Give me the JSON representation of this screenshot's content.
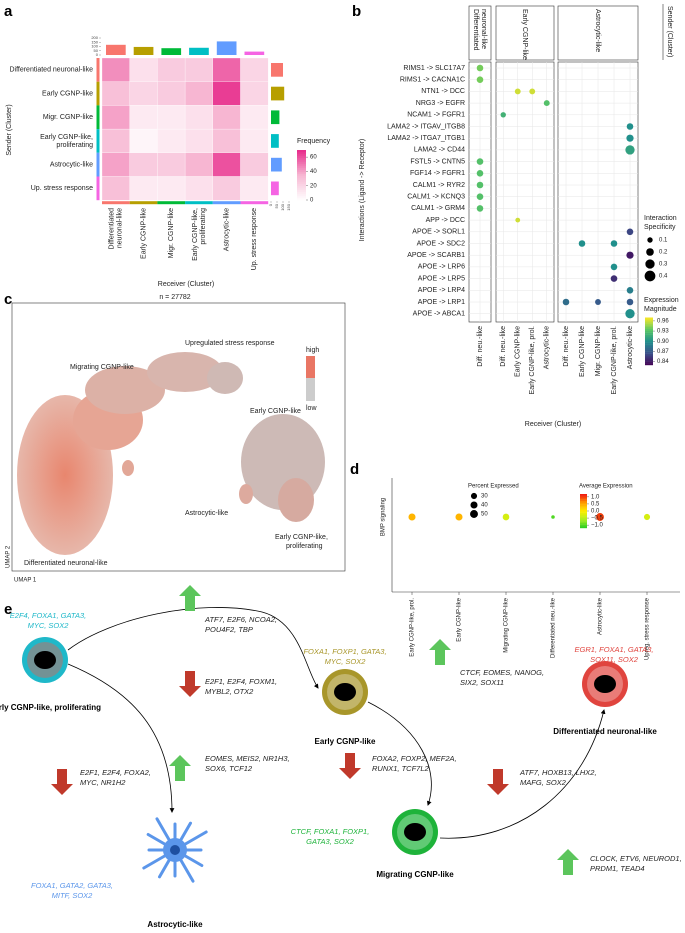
{
  "a": {
    "label": "a",
    "ylabel": "Sender (Cluster)",
    "xlabel": "Receiver (Cluster)",
    "row_labels": [
      [
        "Differentiated neuronal-like"
      ],
      [
        "Early CGNP-like"
      ],
      [
        "Migr. CGNP-like"
      ],
      [
        "Early CGNP-like,",
        "proliferating"
      ],
      [
        "Astrocytic-like"
      ],
      [
        "Up. stress response"
      ]
    ],
    "col_labels": [
      [
        "Differentiated",
        "neuronal-like"
      ],
      [
        "Early CGNP-like"
      ],
      [
        "Migr. CGNP-like"
      ],
      [
        "Early CGNP-like,",
        "proliferating"
      ],
      [
        "Astrocytic-like"
      ],
      [
        "Up. stress response"
      ]
    ],
    "cluster_colors": [
      "#f8766d",
      "#b79f00",
      "#00ba38",
      "#00bfc4",
      "#619cff",
      "#f564e3"
    ],
    "values": [
      [
        45,
        15,
        25,
        25,
        55,
        20
      ],
      [
        30,
        20,
        25,
        35,
        65,
        20
      ],
      [
        40,
        10,
        10,
        15,
        35,
        10
      ],
      [
        30,
        5,
        10,
        15,
        30,
        10
      ],
      [
        40,
        25,
        25,
        35,
        60,
        25
      ],
      [
        30,
        10,
        10,
        15,
        25,
        10
      ]
    ],
    "top_totals": [
      120,
      95,
      80,
      85,
      160,
      40
    ],
    "top_ylim": [
      0,
      200
    ],
    "top_ticks": [
      0,
      50,
      100,
      150,
      200
    ],
    "right_totals": [
      100,
      110,
      70,
      65,
      90,
      65
    ],
    "right_xlim": [
      0,
      150
    ],
    "right_ticks": [
      0,
      50,
      100,
      150
    ],
    "legend": {
      "title": "Frequency",
      "ticks": [
        60,
        40,
        20,
        0
      ],
      "clim": [
        0,
        70
      ],
      "colors": [
        "#ffffff",
        "#f7b6d2",
        "#e7298a"
      ]
    }
  },
  "b": {
    "label": "b",
    "ylabel": "Interactions (Ligand -> Receptor)",
    "xlabel": "Receiver (Cluster)",
    "sender_title": "Sender (Cluster)",
    "interactions": [
      "RIMS1 -> SLC17A7",
      "RIMS1 -> CACNA1C",
      "NTN1 -> DCC",
      "NRG3 -> EGFR",
      "NCAM1 -> FGFR1",
      "LAMA2 -> ITGAV_ITGB8",
      "LAMA2 -> ITGA7_ITGB1",
      "LAMA2 -> CD44",
      "FSTL5 -> CNTN5",
      "FGF14 -> FGFR1",
      "CALM1 -> RYR2",
      "CALM1 -> KCNQ3",
      "CALM1 -> GRM4",
      "APP -> DCC",
      "APOE -> SORL1",
      "APOE -> SDC2",
      "APOE -> SCARB1",
      "APOE -> LRP6",
      "APOE -> LRP5",
      "APOE -> LRP4",
      "APOE -> LRP1",
      "APOE -> ABCA1"
    ],
    "facets": [
      {
        "name": [
          "Differentiated",
          "neuronal-like"
        ],
        "columns": [
          {
            "name": "Diff. neu.-like",
            "specificity": [
              0.15,
              0.15,
              null,
              null,
              null,
              null,
              null,
              null,
              0.15,
              0.15,
              0.15,
              0.15,
              0.15,
              null,
              null,
              null,
              null,
              null,
              null,
              null,
              null,
              null
            ],
            "magnitude": [
              0.94,
              0.94,
              null,
              null,
              null,
              null,
              null,
              null,
              0.93,
              0.93,
              0.93,
              0.93,
              0.93,
              null,
              null,
              null,
              null,
              null,
              null,
              null,
              null,
              null
            ]
          }
        ]
      },
      {
        "name": [
          "Early CGNP-like"
        ],
        "columns": [
          {
            "name": "Diff. neu.-like",
            "specificity": [
              null,
              null,
              null,
              null,
              0.1,
              null,
              null,
              null,
              null,
              null,
              null,
              null,
              null,
              null,
              null,
              null,
              null,
              null,
              null,
              null,
              null,
              null
            ],
            "magnitude": [
              null,
              null,
              null,
              null,
              0.92,
              null,
              null,
              null,
              null,
              null,
              null,
              null,
              null,
              null,
              null,
              null,
              null,
              null,
              null,
              null,
              null,
              null
            ]
          },
          {
            "name": "Early CGNP-like",
            "specificity": [
              null,
              null,
              0.12,
              null,
              null,
              null,
              null,
              null,
              null,
              null,
              null,
              null,
              null,
              0.08,
              null,
              null,
              null,
              null,
              null,
              null,
              null,
              null
            ],
            "magnitude": [
              null,
              null,
              0.96,
              null,
              null,
              null,
              null,
              null,
              null,
              null,
              null,
              null,
              null,
              0.96,
              null,
              null,
              null,
              null,
              null,
              null,
              null,
              null
            ]
          },
          {
            "name": "Early CGNP-like, prol.",
            "specificity": [
              null,
              null,
              0.12,
              null,
              null,
              null,
              null,
              null,
              null,
              null,
              null,
              null,
              null,
              null,
              null,
              null,
              null,
              null,
              null,
              null,
              null,
              null
            ],
            "magnitude": [
              null,
              null,
              0.96,
              null,
              null,
              null,
              null,
              null,
              null,
              null,
              null,
              null,
              null,
              null,
              null,
              null,
              null,
              null,
              null,
              null,
              null,
              null
            ]
          },
          {
            "name": "Astrocytic-like",
            "specificity": [
              null,
              null,
              null,
              0.12,
              null,
              null,
              null,
              null,
              null,
              null,
              null,
              null,
              null,
              null,
              null,
              null,
              null,
              null,
              null,
              null,
              null,
              null
            ],
            "magnitude": [
              null,
              null,
              null,
              0.93,
              null,
              null,
              null,
              null,
              null,
              null,
              null,
              null,
              null,
              null,
              null,
              null,
              null,
              null,
              null,
              null,
              null,
              null
            ]
          }
        ]
      },
      {
        "name": [
          "Astrocytic-like"
        ],
        "columns": [
          {
            "name": "Diff. neu.-like",
            "specificity": [
              null,
              null,
              null,
              null,
              null,
              null,
              null,
              null,
              null,
              null,
              null,
              null,
              null,
              null,
              null,
              null,
              null,
              null,
              null,
              null,
              0.15,
              null
            ],
            "magnitude": [
              null,
              null,
              null,
              null,
              null,
              null,
              null,
              null,
              null,
              null,
              null,
              null,
              null,
              null,
              null,
              null,
              null,
              null,
              null,
              null,
              0.88,
              null
            ]
          },
          {
            "name": "Early CGNP-like",
            "specificity": [
              null,
              null,
              null,
              null,
              null,
              null,
              null,
              null,
              null,
              null,
              null,
              null,
              null,
              null,
              null,
              0.15,
              null,
              null,
              null,
              null,
              null,
              null
            ],
            "magnitude": [
              null,
              null,
              null,
              null,
              null,
              null,
              null,
              null,
              null,
              null,
              null,
              null,
              null,
              null,
              null,
              0.9,
              null,
              null,
              null,
              null,
              null,
              null
            ]
          },
          {
            "name": "Migr. CGNP-like",
            "specificity": [
              null,
              null,
              null,
              null,
              null,
              null,
              null,
              null,
              null,
              null,
              null,
              null,
              null,
              null,
              null,
              null,
              null,
              null,
              null,
              null,
              0.12,
              null
            ],
            "magnitude": [
              null,
              null,
              null,
              null,
              null,
              null,
              null,
              null,
              null,
              null,
              null,
              null,
              null,
              null,
              null,
              null,
              null,
              null,
              null,
              null,
              0.87,
              null
            ]
          },
          {
            "name": "Early CGNP-like, prol.",
            "specificity": [
              null,
              null,
              null,
              null,
              null,
              null,
              null,
              null,
              null,
              null,
              null,
              null,
              null,
              null,
              null,
              0.15,
              null,
              0.15,
              0.15,
              null,
              null,
              null
            ],
            "magnitude": [
              null,
              null,
              null,
              null,
              null,
              null,
              null,
              null,
              null,
              null,
              null,
              null,
              null,
              null,
              null,
              0.9,
              null,
              0.9,
              0.85,
              null,
              null,
              null
            ]
          },
          {
            "name": "Astrocytic-like",
            "specificity": [
              null,
              null,
              null,
              null,
              null,
              0.15,
              0.18,
              0.3,
              null,
              null,
              null,
              null,
              null,
              null,
              0.15,
              null,
              0.18,
              null,
              null,
              0.15,
              0.15,
              0.3
            ],
            "magnitude": [
              null,
              null,
              null,
              null,
              null,
              0.9,
              0.9,
              0.91,
              null,
              null,
              null,
              null,
              null,
              null,
              0.86,
              null,
              0.84,
              null,
              null,
              0.89,
              0.87,
              0.9
            ]
          }
        ]
      }
    ],
    "size_legend": {
      "title": [
        "Interaction",
        "Specificity"
      ],
      "values": [
        0.1,
        0.2,
        0.3,
        0.4
      ]
    },
    "color_legend": {
      "title": [
        "Expression",
        "Magnitude"
      ],
      "ticks": [
        0.96,
        0.93,
        {
          "value": 0.9,
          "label": "0.90"
        },
        0.87,
        0.84
      ],
      "clim": [
        0.83,
        0.97
      ],
      "colors": [
        "#440154",
        "#3b528b",
        "#21908c",
        "#5dc863",
        "#fde725"
      ]
    }
  },
  "c": {
    "label": "c",
    "title": "n = 27782",
    "xlabel": "UMAP 1",
    "ylabel": "UMAP 2",
    "cluster_labels": [
      "Migrating CGNP-like",
      "Upregulated stress response",
      "Early CGNP-like",
      "Astrocytic-like",
      [
        "Early CGNP-like,",
        "proliferating"
      ],
      "Differentiated neuronal-like"
    ],
    "legend": {
      "high": "high",
      "low": "low"
    }
  },
  "d": {
    "label": "d",
    "row": "BMP signaling",
    "categories": [
      "Early CGNP-like, prol.",
      "Early CGNP-like",
      "Migrating CGNP-like",
      "Differentiated neu.-like",
      "Astrocytic-like",
      "Upreg. stress response"
    ],
    "percent": [
      40,
      40,
      35,
      10,
      50,
      30
    ],
    "avg_expr": [
      0.4,
      0.4,
      -0.3,
      -1.0,
      1.0,
      -0.3
    ],
    "size_legend": {
      "title": "Percent Expressed",
      "values": [
        30,
        40,
        50
      ]
    },
    "color_legend": {
      "title": "Average Expression",
      "ticks": [
        {
          "value": 1,
          "label": "1.0"
        },
        0.5,
        {
          "value": 0,
          "label": "0.0"
        },
        {
          "value": -0.5,
          "label": "−0.5"
        },
        {
          "value": -1,
          "label": "−1.0"
        }
      ],
      "clim": [
        -1.2,
        1.2
      ],
      "colors": [
        "#22cc22",
        "#aaee22",
        "#ffee00",
        "#ff9900",
        "#ee1111"
      ]
    }
  },
  "e": {
    "label": "e",
    "cells": [
      {
        "name": "Early CGNP-like, proliferating",
        "genes": [
          "E2F4, FOXA1, GATA3,",
          "MYC, SOX2"
        ],
        "color": "#1fb8c9"
      },
      {
        "name": "Early CGNP-like",
        "genes": [
          "FOXA1, FOXP1, GATA3,",
          "MYC, SOX2"
        ],
        "color": "#a8962a"
      },
      {
        "name": "Differentiated neuronal-like",
        "genes": [
          "EGR1, FOXA1, GATA3,",
          "SOX11, SOX2"
        ],
        "color": "#e0443e"
      },
      {
        "name": "Migrating CGNP-like",
        "genes": [
          "CTCF, FOXA1, FOXP1,",
          "GATA3, SOX2"
        ],
        "color": "#1eb33a"
      },
      {
        "name": "Astrocytic-like",
        "genes": [
          "FOXA1, GATA2, GATA3,",
          "MITF, SOX2"
        ],
        "color": "#5b96ea"
      }
    ],
    "transitions": [
      [
        "ATF7, E2F6, NCOA2,",
        "POU4F2, TBP"
      ],
      [
        "E2F1, E2F4, FOXM1,",
        "MYBL2, OTX2"
      ],
      [
        "CTCF, EOMES, NANOG,",
        "SIX2, SOX11"
      ],
      [
        "E2F1, E2F4, FOXA2,",
        "MYC, NR1H2"
      ],
      [
        "EOMES, MEIS2, NR1H3,",
        "SOX6, TCF12"
      ],
      [
        "FOXA2, FOXP2, MEF2A,",
        "RUNX1, TCF7L2"
      ],
      [
        "ATF7, HOXB13, LHX2,",
        "MAFG, SOX2"
      ],
      [
        "CLOCK, ETV6, NEUROD1,",
        "PRDM1, TEAD4"
      ]
    ]
  }
}
